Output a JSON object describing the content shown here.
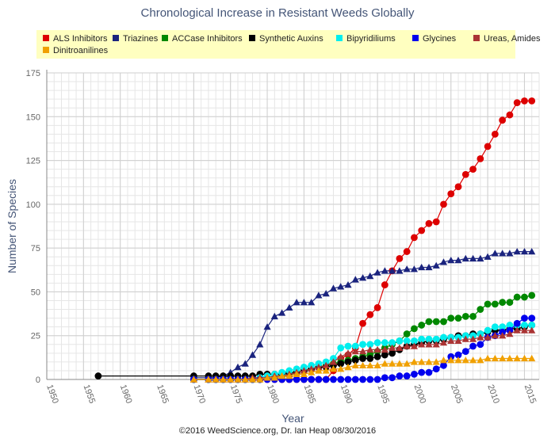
{
  "chart_data": {
    "type": "line",
    "title": "Chronological Increase in Resistant Weeds Globally",
    "xlabel": "Year",
    "ylabel": "Number of Species",
    "xlim": [
      1950,
      2017
    ],
    "ylim": [
      0,
      175
    ],
    "x_ticks": [
      1950,
      1955,
      1960,
      1965,
      1970,
      1975,
      1980,
      1985,
      1990,
      1995,
      2000,
      2005,
      2010,
      2015
    ],
    "y_ticks": [
      0,
      25,
      50,
      75,
      100,
      125,
      150,
      175
    ],
    "grid": true,
    "legend_position": "top",
    "series": [
      {
        "name": "ALS Inhibitors",
        "color": "#dd0000",
        "marker": "circle",
        "x": [
          1970,
          1972,
          1973,
          1974,
          1975,
          1976,
          1977,
          1978,
          1979,
          1980,
          1981,
          1982,
          1983,
          1984,
          1985,
          1986,
          1987,
          1988,
          1989,
          1990,
          1991,
          1992,
          1993,
          1994,
          1995,
          1996,
          1997,
          1998,
          1999,
          2000,
          2001,
          2002,
          2003,
          2004,
          2005,
          2006,
          2007,
          2008,
          2009,
          2010,
          2011,
          2012,
          2013,
          2014,
          2015,
          2016
        ],
        "y": [
          0,
          0,
          0,
          0,
          0,
          0,
          0,
          0,
          0,
          0,
          0,
          0,
          0,
          0,
          0,
          0,
          0,
          0,
          5,
          12,
          14,
          18,
          32,
          37,
          41,
          54,
          62,
          69,
          73,
          81,
          85,
          89,
          90,
          100,
          106,
          110,
          117,
          120,
          126,
          133,
          140,
          148,
          151,
          158,
          159,
          159
        ]
      },
      {
        "name": "Triazines",
        "color": "#1a237e",
        "marker": "triangle",
        "x": [
          1970,
          1972,
          1973,
          1974,
          1975,
          1976,
          1977,
          1978,
          1979,
          1980,
          1981,
          1982,
          1983,
          1984,
          1985,
          1986,
          1987,
          1988,
          1989,
          1990,
          1991,
          1992,
          1993,
          1994,
          1995,
          1996,
          1997,
          1998,
          1999,
          2000,
          2001,
          2002,
          2003,
          2004,
          2005,
          2006,
          2007,
          2008,
          2009,
          2010,
          2011,
          2012,
          2013,
          2014,
          2015,
          2016
        ],
        "y": [
          1,
          1,
          1,
          2,
          4,
          7,
          9,
          14,
          20,
          30,
          36,
          38,
          41,
          44,
          44,
          44,
          48,
          49,
          52,
          53,
          54,
          57,
          58,
          59,
          61,
          62,
          62,
          62,
          63,
          63,
          64,
          64,
          65,
          67,
          68,
          68,
          69,
          69,
          69,
          70,
          72,
          72,
          72,
          73,
          73,
          73
        ]
      },
      {
        "name": "ACCase Inhibitors",
        "color": "#008800",
        "marker": "circle",
        "x": [
          1970,
          1972,
          1973,
          1974,
          1975,
          1976,
          1977,
          1978,
          1979,
          1980,
          1981,
          1982,
          1983,
          1984,
          1985,
          1986,
          1987,
          1988,
          1989,
          1990,
          1991,
          1992,
          1993,
          1994,
          1995,
          1996,
          1997,
          1998,
          1999,
          2000,
          2001,
          2002,
          2003,
          2004,
          2005,
          2006,
          2007,
          2008,
          2009,
          2010,
          2011,
          2012,
          2013,
          2014,
          2015,
          2016
        ],
        "y": [
          0,
          0,
          0,
          0,
          0,
          0,
          0,
          0,
          0,
          1,
          1,
          2,
          3,
          4,
          5,
          6,
          7,
          8,
          9,
          10,
          11,
          12,
          13,
          14,
          16,
          18,
          20,
          22,
          26,
          29,
          31,
          33,
          33,
          33,
          35,
          35,
          36,
          36,
          40,
          43,
          43,
          44,
          44,
          47,
          47,
          48
        ]
      },
      {
        "name": "Synthetic Auxins",
        "color": "#000000",
        "marker": "circle",
        "x": [
          1957,
          1970,
          1972,
          1973,
          1974,
          1975,
          1976,
          1977,
          1978,
          1979,
          1980,
          1981,
          1982,
          1983,
          1984,
          1985,
          1986,
          1987,
          1988,
          1989,
          1990,
          1991,
          1992,
          1993,
          1994,
          1995,
          1996,
          1997,
          1998,
          1999,
          2000,
          2001,
          2002,
          2003,
          2004,
          2005,
          2006,
          2007,
          2008,
          2009,
          2010,
          2011,
          2012,
          2013,
          2014,
          2015,
          2016
        ],
        "y": [
          2,
          2,
          2,
          2,
          2,
          2,
          2,
          2,
          2,
          3,
          3,
          3,
          3,
          4,
          4,
          5,
          6,
          7,
          7,
          8,
          9,
          10,
          11,
          12,
          12,
          13,
          14,
          15,
          17,
          19,
          20,
          21,
          22,
          22,
          23,
          24,
          25,
          25,
          26,
          26,
          27,
          28,
          28,
          29,
          29,
          30,
          31
        ]
      },
      {
        "name": "Bipyridiliums",
        "color": "#00eeee",
        "marker": "circle",
        "x": [
          1970,
          1972,
          1973,
          1974,
          1975,
          1976,
          1977,
          1978,
          1979,
          1980,
          1981,
          1982,
          1983,
          1984,
          1985,
          1986,
          1987,
          1988,
          1989,
          1990,
          1991,
          1992,
          1993,
          1994,
          1995,
          1996,
          1997,
          1998,
          1999,
          2000,
          2001,
          2002,
          2003,
          2004,
          2005,
          2006,
          2007,
          2008,
          2009,
          2010,
          2011,
          2012,
          2013,
          2014,
          2015,
          2016
        ],
        "y": [
          0,
          0,
          0,
          0,
          0,
          0,
          0,
          0,
          1,
          2,
          3,
          4,
          5,
          6,
          7,
          8,
          9,
          10,
          12,
          18,
          19,
          19,
          20,
          20,
          21,
          21,
          21,
          22,
          22,
          22,
          23,
          23,
          23,
          24,
          24,
          24,
          25,
          25,
          26,
          28,
          30,
          30,
          31,
          31,
          31,
          31
        ]
      },
      {
        "name": "Glycines",
        "color": "#0000ee",
        "marker": "circle",
        "x": [
          1970,
          1972,
          1973,
          1974,
          1975,
          1976,
          1977,
          1978,
          1979,
          1980,
          1981,
          1982,
          1983,
          1984,
          1985,
          1986,
          1987,
          1988,
          1989,
          1990,
          1991,
          1992,
          1993,
          1994,
          1995,
          1996,
          1997,
          1998,
          1999,
          2000,
          2001,
          2002,
          2003,
          2004,
          2005,
          2006,
          2007,
          2008,
          2009,
          2010,
          2011,
          2012,
          2013,
          2014,
          2015,
          2016
        ],
        "y": [
          0,
          0,
          0,
          0,
          0,
          0,
          0,
          0,
          0,
          0,
          0,
          0,
          0,
          0,
          0,
          0,
          0,
          0,
          0,
          0,
          0,
          0,
          0,
          0,
          0,
          1,
          1,
          2,
          2,
          3,
          4,
          4,
          6,
          8,
          13,
          14,
          16,
          19,
          20,
          24,
          25,
          27,
          28,
          32,
          35,
          35
        ]
      },
      {
        "name": "Ureas, Amides",
        "color": "#aa3333",
        "marker": "triangle",
        "x": [
          1970,
          1972,
          1973,
          1974,
          1975,
          1976,
          1977,
          1978,
          1979,
          1980,
          1981,
          1982,
          1983,
          1984,
          1985,
          1986,
          1987,
          1988,
          1989,
          1990,
          1991,
          1992,
          1993,
          1994,
          1995,
          1996,
          1997,
          1998,
          1999,
          2000,
          2001,
          2002,
          2003,
          2004,
          2005,
          2006,
          2007,
          2008,
          2009,
          2010,
          2011,
          2012,
          2013,
          2014,
          2015,
          2016
        ],
        "y": [
          0,
          0,
          0,
          0,
          0,
          0,
          0,
          1,
          1,
          1,
          2,
          2,
          3,
          4,
          5,
          6,
          7,
          8,
          10,
          13,
          15,
          16,
          16,
          17,
          17,
          17,
          18,
          18,
          19,
          19,
          20,
          20,
          20,
          21,
          22,
          22,
          23,
          23,
          24,
          24,
          25,
          25,
          26,
          28,
          28,
          28
        ]
      },
      {
        "name": "Dinitroanilines",
        "color": "#f0a000",
        "marker": "triangle",
        "x": [
          1970,
          1972,
          1973,
          1974,
          1975,
          1976,
          1977,
          1978,
          1979,
          1980,
          1981,
          1982,
          1983,
          1984,
          1985,
          1986,
          1987,
          1988,
          1989,
          1990,
          1991,
          1992,
          1993,
          1994,
          1995,
          1996,
          1997,
          1998,
          1999,
          2000,
          2001,
          2002,
          2003,
          2004,
          2005,
          2006,
          2007,
          2008,
          2009,
          2010,
          2011,
          2012,
          2013,
          2014,
          2015,
          2016
        ],
        "y": [
          0,
          0,
          0,
          0,
          0,
          0,
          0,
          0,
          0,
          1,
          1,
          2,
          2,
          3,
          3,
          4,
          5,
          5,
          6,
          6,
          7,
          8,
          8,
          8,
          8,
          9,
          9,
          9,
          9,
          10,
          10,
          10,
          10,
          11,
          11,
          11,
          11,
          11,
          11,
          12,
          12,
          12,
          12,
          12,
          12,
          12
        ]
      }
    ]
  },
  "footer": "©2016 WeedScience.org, Dr. Ian Heap 08/30/2016"
}
